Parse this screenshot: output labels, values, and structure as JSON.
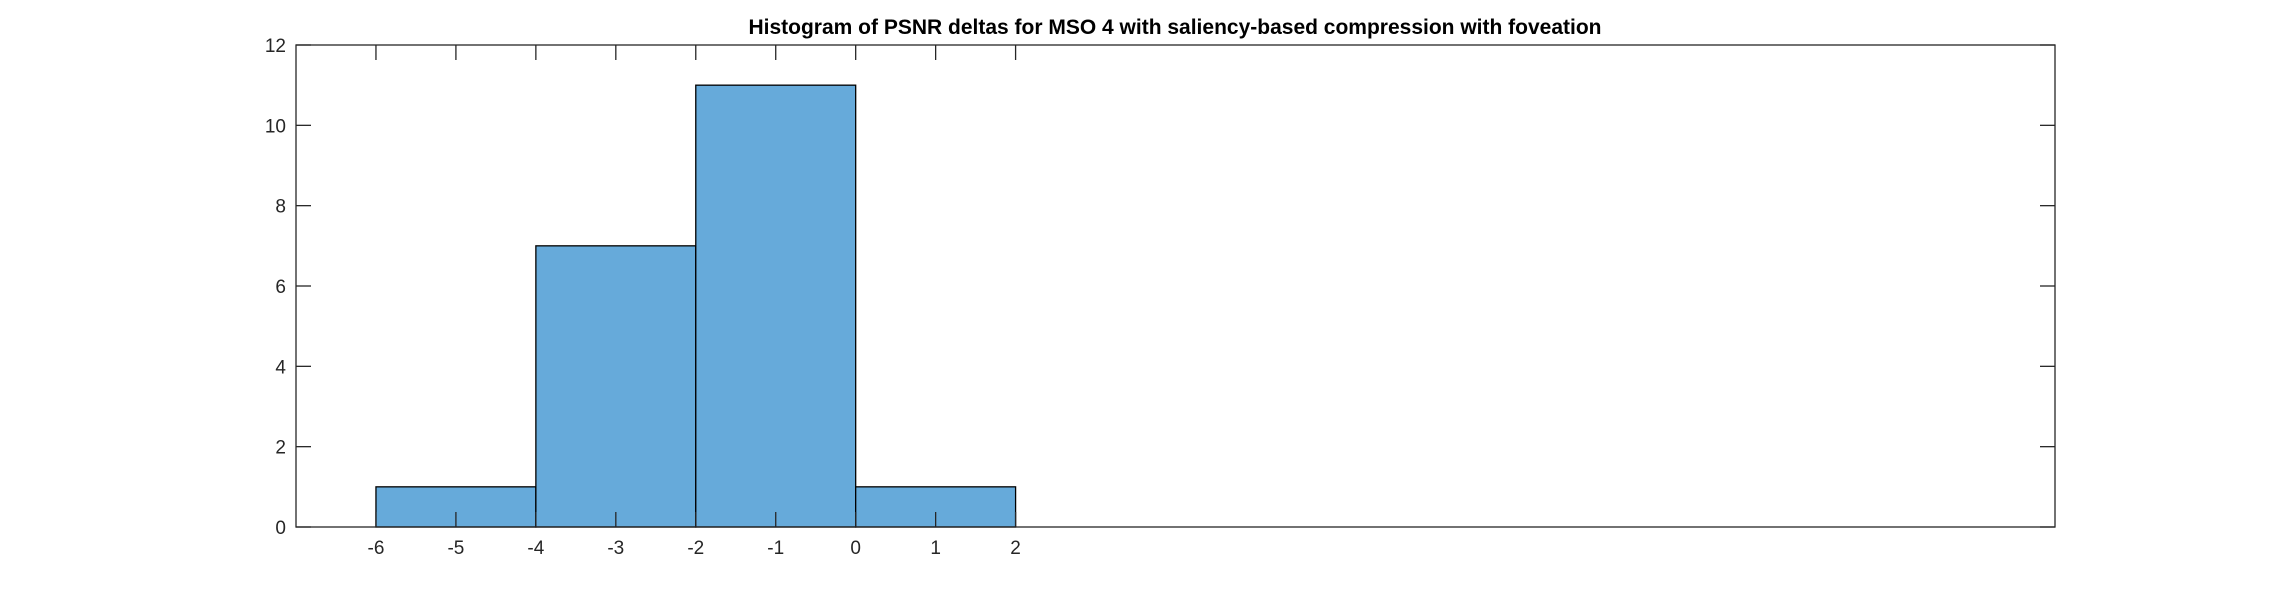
{
  "chart_data": {
    "type": "bar",
    "subtype": "histogram",
    "title": "Histogram of PSNR deltas for MSO 4 with saliency-based compression with foveation",
    "xlabel": "",
    "ylabel": "",
    "bin_edges": [
      -6,
      -4,
      -2,
      0,
      2
    ],
    "counts": [
      1,
      7,
      11,
      1
    ],
    "xlim": [
      -7,
      15
    ],
    "ylim": [
      0,
      12
    ],
    "xticks": [
      -6,
      -5,
      -4,
      -3,
      -2,
      -1,
      0,
      1,
      2
    ],
    "yticks": [
      0,
      2,
      4,
      6,
      8,
      10,
      12
    ],
    "grid": false,
    "legend": "none",
    "bar_color": "#66AADA",
    "edge_color": "#000000"
  }
}
